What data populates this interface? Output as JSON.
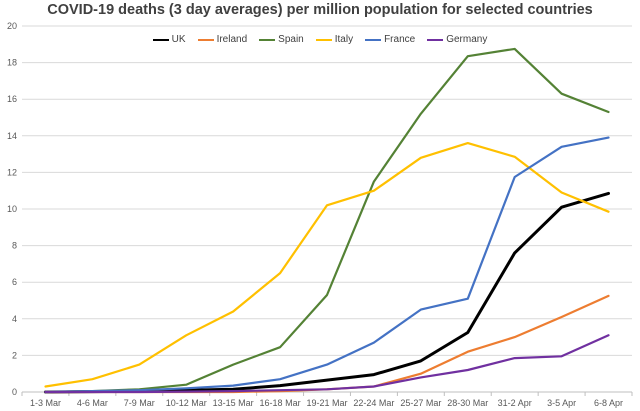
{
  "chart_data": {
    "type": "line",
    "title": "COVID-19 deaths (3 day averages) per million population for selected countries",
    "xlabel": "",
    "ylabel": "",
    "ylim": [
      0,
      20
    ],
    "yticks": [
      0,
      2,
      4,
      6,
      8,
      10,
      12,
      14,
      16,
      18,
      20
    ],
    "grid": true,
    "legend_position": "top",
    "categories": [
      "1-3 Mar",
      "4-6 Mar",
      "7-9 Mar",
      "10-12 Mar",
      "13-15 Mar",
      "16-18 Mar",
      "19-21 Mar",
      "22-24 Mar",
      "25-27 Mar",
      "28-30 Mar",
      "31-2 Apr",
      "3-5 Apr",
      "6-8 Apr"
    ],
    "series": [
      {
        "name": "UK",
        "color": "#000000",
        "values": [
          0.0,
          0.02,
          0.05,
          0.1,
          0.15,
          0.35,
          0.65,
          0.95,
          1.7,
          3.25,
          7.6,
          10.1,
          10.85
        ]
      },
      {
        "name": "Ireland",
        "color": "#ED7D31",
        "values": [
          0.0,
          0.0,
          0.0,
          0.0,
          0.0,
          0.05,
          0.15,
          0.3,
          1.0,
          2.2,
          3.0,
          4.1,
          5.25
        ]
      },
      {
        "name": "Spain",
        "color": "#548235",
        "values": [
          0.0,
          0.05,
          0.15,
          0.4,
          1.5,
          2.45,
          5.3,
          11.5,
          15.2,
          18.35,
          18.75,
          16.3,
          15.3
        ]
      },
      {
        "name": "Italy",
        "color": "#FFC000",
        "values": [
          0.3,
          0.7,
          1.5,
          3.1,
          4.4,
          6.5,
          10.2,
          11.0,
          12.8,
          13.6,
          12.85,
          10.9,
          9.85
        ]
      },
      {
        "name": "France",
        "color": "#4472C4",
        "values": [
          0.0,
          0.05,
          0.1,
          0.2,
          0.35,
          0.7,
          1.5,
          2.7,
          4.5,
          5.1,
          11.75,
          13.4,
          13.9
        ]
      },
      {
        "name": "Germany",
        "color": "#7030A0",
        "values": [
          0.0,
          0.0,
          0.0,
          0.02,
          0.05,
          0.1,
          0.15,
          0.3,
          0.8,
          1.2,
          1.85,
          1.95,
          3.1
        ]
      }
    ]
  }
}
